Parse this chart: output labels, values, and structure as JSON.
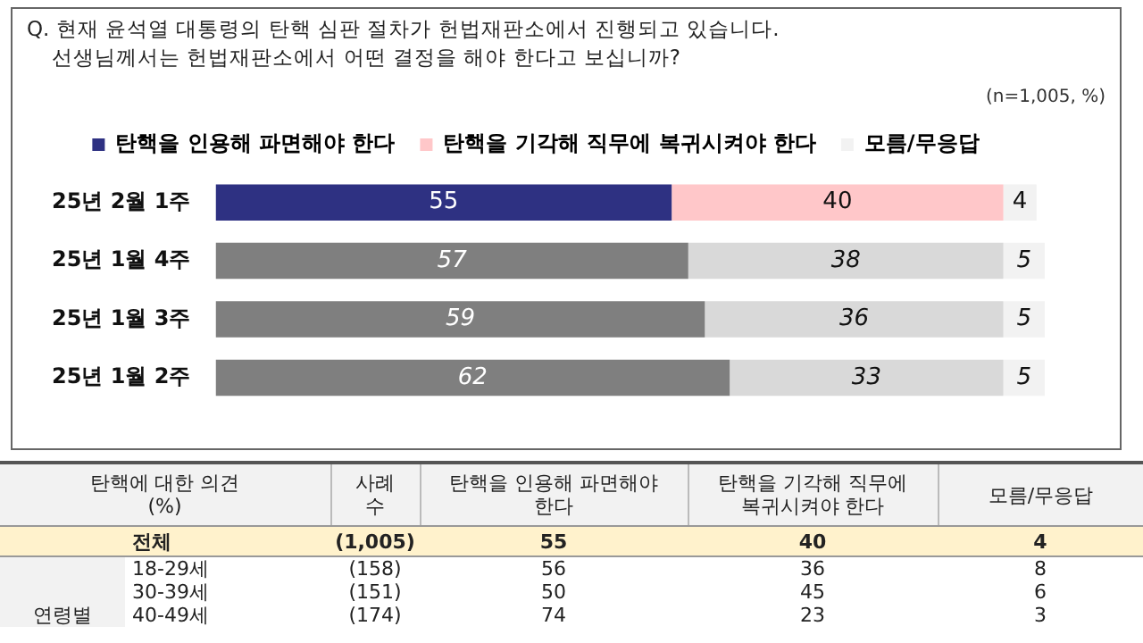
{
  "chart_data": [
    {
      "type": "bar",
      "orientation": "horizontal",
      "stacked": true,
      "title": "Q. 현재 윤석열 대통령의 탄핵 심판 절차가 헌법재판소에서 진행되고 있습니다.",
      "subtitle": "선생님께서는 헌법재판소에서 어떤 결정을 해야 한다고 보십니까?",
      "annotations": [
        "(n=1,005, %)"
      ],
      "categories": [
        "25년 2월 1주",
        "25년 1월 4주",
        "25년 1월 3주",
        "25년 1월 2주"
      ],
      "legend": "top",
      "tick_labels": "y",
      "grid": false,
      "data_labels": true,
      "series": [
        {
          "name": "탄핵을 인용해 파면해야 한다",
          "color": "#2e3182",
          "colors": [
            "#2e3182",
            "#7f7f7f",
            "#7f7f7f",
            "#7f7f7f"
          ],
          "values": [
            55,
            57,
            59,
            62
          ]
        },
        {
          "name": "탄핵을 기각해 직무에 복귀시켜야 한다",
          "color": "#ffc7c9",
          "colors": [
            "#ffc7c9",
            "#d9d9d9",
            "#d9d9d9",
            "#d9d9d9"
          ],
          "values": [
            40,
            38,
            36,
            33
          ]
        },
        {
          "name": "모름/무응답",
          "color": "#f2f2f2",
          "colors": [
            "#f2f2f2",
            "#f2f2f2",
            "#f2f2f2",
            "#f2f2f2"
          ],
          "values": [
            4,
            5,
            5,
            5
          ]
        }
      ]
    },
    {
      "type": "other",
      "title": "탄핵에 대한 의견 (%)",
      "categories": [
        "사례수",
        "탄핵을 인용해 파면해야 한다",
        "탄핵을 기각해 직무에 복귀시켜야 한다",
        "모름/무응답"
      ],
      "y_categories": [
        "전체",
        "18-29세",
        "30-39세",
        "40-49세"
      ],
      "annotations": [
        "연령별"
      ],
      "cell_labels": [
        [
          "(1,005)",
          "55",
          "40",
          "4"
        ],
        [
          "(158)",
          "56",
          "36",
          "8"
        ],
        [
          "(151)",
          "50",
          "45",
          "6"
        ],
        [
          "(174)",
          "74",
          "23",
          "3"
        ]
      ]
    }
  ]
}
